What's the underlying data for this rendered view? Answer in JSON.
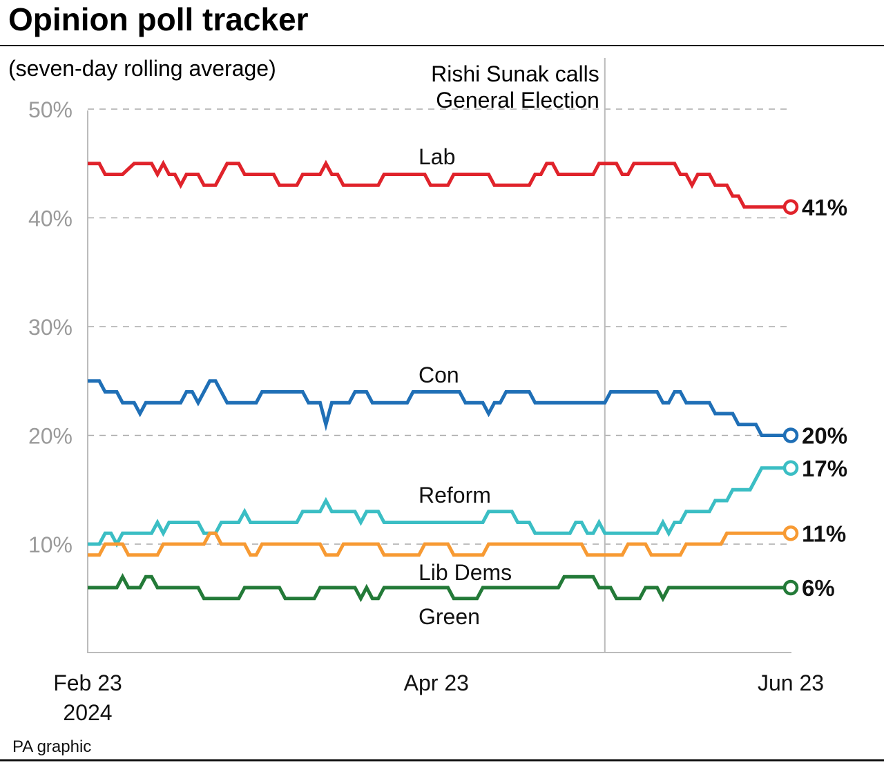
{
  "title": "Opinion poll tracker",
  "footer": "PA graphic",
  "chart_data": {
    "type": "line",
    "title": "Opinion poll tracker",
    "subtitle": "(seven-day rolling average)",
    "ylim": [
      0,
      50
    ],
    "yticks": [
      10,
      20,
      30,
      40,
      50
    ],
    "ytick_labels": [
      "10%",
      "20%",
      "30%",
      "40%",
      "50%"
    ],
    "xlim": [
      "2024-02-23",
      "2024-06-23"
    ],
    "xticks": [
      {
        "date": "2024-02-23",
        "label": "Feb 23",
        "label2": "2024"
      },
      {
        "date": "2024-04-23",
        "label": "Apr 23",
        "label2": ""
      },
      {
        "date": "2024-06-23",
        "label": "Jun 23",
        "label2": ""
      }
    ],
    "grid": "horizontal dashed",
    "annotation": {
      "date": "2024-05-22",
      "line1": "Rishi Sunak calls",
      "line2": "General Election"
    },
    "series": [
      {
        "name": "Lab",
        "color": "#e0232b",
        "end_label": "41%",
        "points": [
          [
            "2024-02-23",
            45
          ],
          [
            "2024-02-25",
            45
          ],
          [
            "2024-02-26",
            44
          ],
          [
            "2024-02-29",
            44
          ],
          [
            "2024-03-02",
            45
          ],
          [
            "2024-03-05",
            45
          ],
          [
            "2024-03-06",
            44
          ],
          [
            "2024-03-07",
            45
          ],
          [
            "2024-03-08",
            44
          ],
          [
            "2024-03-09",
            44
          ],
          [
            "2024-03-10",
            43
          ],
          [
            "2024-03-11",
            44
          ],
          [
            "2024-03-13",
            44
          ],
          [
            "2024-03-14",
            43
          ],
          [
            "2024-03-16",
            43
          ],
          [
            "2024-03-18",
            45
          ],
          [
            "2024-03-20",
            45
          ],
          [
            "2024-03-21",
            44
          ],
          [
            "2024-03-26",
            44
          ],
          [
            "2024-03-27",
            43
          ],
          [
            "2024-03-30",
            43
          ],
          [
            "2024-03-31",
            44
          ],
          [
            "2024-04-03",
            44
          ],
          [
            "2024-04-04",
            45
          ],
          [
            "2024-04-05",
            44
          ],
          [
            "2024-04-06",
            44
          ],
          [
            "2024-04-07",
            43
          ],
          [
            "2024-04-13",
            43
          ],
          [
            "2024-04-14",
            44
          ],
          [
            "2024-04-21",
            44
          ],
          [
            "2024-04-22",
            43
          ],
          [
            "2024-04-25",
            43
          ],
          [
            "2024-04-26",
            44
          ],
          [
            "2024-05-02",
            44
          ],
          [
            "2024-05-03",
            43
          ],
          [
            "2024-05-09",
            43
          ],
          [
            "2024-05-10",
            44
          ],
          [
            "2024-05-11",
            44
          ],
          [
            "2024-05-12",
            45
          ],
          [
            "2024-05-13",
            45
          ],
          [
            "2024-05-14",
            44
          ],
          [
            "2024-05-20",
            44
          ],
          [
            "2024-05-21",
            45
          ],
          [
            "2024-05-24",
            45
          ],
          [
            "2024-05-25",
            44
          ],
          [
            "2024-05-26",
            44
          ],
          [
            "2024-05-27",
            45
          ],
          [
            "2024-06-03",
            45
          ],
          [
            "2024-06-04",
            44
          ],
          [
            "2024-06-05",
            44
          ],
          [
            "2024-06-06",
            43
          ],
          [
            "2024-06-07",
            44
          ],
          [
            "2024-06-09",
            44
          ],
          [
            "2024-06-10",
            43
          ],
          [
            "2024-06-12",
            43
          ],
          [
            "2024-06-13",
            42
          ],
          [
            "2024-06-14",
            42
          ],
          [
            "2024-06-15",
            41
          ],
          [
            "2024-06-23",
            41
          ]
        ]
      },
      {
        "name": "Con",
        "color": "#1f6fb6",
        "end_label": "20%",
        "points": [
          [
            "2024-02-23",
            25
          ],
          [
            "2024-02-25",
            25
          ],
          [
            "2024-02-26",
            24
          ],
          [
            "2024-02-28",
            24
          ],
          [
            "2024-02-29",
            23
          ],
          [
            "2024-03-02",
            23
          ],
          [
            "2024-03-03",
            22
          ],
          [
            "2024-03-04",
            23
          ],
          [
            "2024-03-10",
            23
          ],
          [
            "2024-03-11",
            24
          ],
          [
            "2024-03-12",
            24
          ],
          [
            "2024-03-13",
            23
          ],
          [
            "2024-03-15",
            25
          ],
          [
            "2024-03-16",
            25
          ],
          [
            "2024-03-18",
            23
          ],
          [
            "2024-03-23",
            23
          ],
          [
            "2024-03-24",
            24
          ],
          [
            "2024-03-31",
            24
          ],
          [
            "2024-04-01",
            23
          ],
          [
            "2024-04-03",
            23
          ],
          [
            "2024-04-04",
            21
          ],
          [
            "2024-04-05",
            23
          ],
          [
            "2024-04-08",
            23
          ],
          [
            "2024-04-09",
            24
          ],
          [
            "2024-04-11",
            24
          ],
          [
            "2024-04-12",
            23
          ],
          [
            "2024-04-18",
            23
          ],
          [
            "2024-04-19",
            24
          ],
          [
            "2024-04-27",
            24
          ],
          [
            "2024-04-28",
            23
          ],
          [
            "2024-05-01",
            23
          ],
          [
            "2024-05-02",
            22
          ],
          [
            "2024-05-03",
            23
          ],
          [
            "2024-05-04",
            23
          ],
          [
            "2024-05-05",
            24
          ],
          [
            "2024-05-09",
            24
          ],
          [
            "2024-05-10",
            23
          ],
          [
            "2024-05-22",
            23
          ],
          [
            "2024-05-23",
            24
          ],
          [
            "2024-05-31",
            24
          ],
          [
            "2024-06-01",
            23
          ],
          [
            "2024-06-02",
            23
          ],
          [
            "2024-06-03",
            24
          ],
          [
            "2024-06-04",
            24
          ],
          [
            "2024-06-05",
            23
          ],
          [
            "2024-06-09",
            23
          ],
          [
            "2024-06-10",
            22
          ],
          [
            "2024-06-13",
            22
          ],
          [
            "2024-06-14",
            21
          ],
          [
            "2024-06-17",
            21
          ],
          [
            "2024-06-18",
            20
          ],
          [
            "2024-06-23",
            20
          ]
        ]
      },
      {
        "name": "Reform",
        "color": "#3bbec4",
        "end_label": "17%",
        "points": [
          [
            "2024-02-23",
            10
          ],
          [
            "2024-02-25",
            10
          ],
          [
            "2024-02-26",
            11
          ],
          [
            "2024-02-27",
            11
          ],
          [
            "2024-02-28",
            10
          ],
          [
            "2024-02-29",
            11
          ],
          [
            "2024-03-05",
            11
          ],
          [
            "2024-03-06",
            12
          ],
          [
            "2024-03-07",
            11
          ],
          [
            "2024-03-08",
            12
          ],
          [
            "2024-03-13",
            12
          ],
          [
            "2024-03-14",
            11
          ],
          [
            "2024-03-16",
            11
          ],
          [
            "2024-03-17",
            12
          ],
          [
            "2024-03-20",
            12
          ],
          [
            "2024-03-21",
            13
          ],
          [
            "2024-03-22",
            12
          ],
          [
            "2024-03-30",
            12
          ],
          [
            "2024-03-31",
            13
          ],
          [
            "2024-04-03",
            13
          ],
          [
            "2024-04-04",
            14
          ],
          [
            "2024-04-05",
            13
          ],
          [
            "2024-04-09",
            13
          ],
          [
            "2024-04-10",
            12
          ],
          [
            "2024-04-11",
            13
          ],
          [
            "2024-04-13",
            13
          ],
          [
            "2024-04-14",
            12
          ],
          [
            "2024-05-01",
            12
          ],
          [
            "2024-05-02",
            13
          ],
          [
            "2024-05-06",
            13
          ],
          [
            "2024-05-07",
            12
          ],
          [
            "2024-05-09",
            12
          ],
          [
            "2024-05-10",
            11
          ],
          [
            "2024-05-16",
            11
          ],
          [
            "2024-05-17",
            12
          ],
          [
            "2024-05-18",
            12
          ],
          [
            "2024-05-19",
            11
          ],
          [
            "2024-05-20",
            11
          ],
          [
            "2024-05-21",
            12
          ],
          [
            "2024-05-22",
            11
          ],
          [
            "2024-05-31",
            11
          ],
          [
            "2024-06-01",
            12
          ],
          [
            "2024-06-02",
            11
          ],
          [
            "2024-06-03",
            12
          ],
          [
            "2024-06-04",
            12
          ],
          [
            "2024-06-05",
            13
          ],
          [
            "2024-06-09",
            13
          ],
          [
            "2024-06-10",
            14
          ],
          [
            "2024-06-12",
            14
          ],
          [
            "2024-06-13",
            15
          ],
          [
            "2024-06-16",
            15
          ],
          [
            "2024-06-18",
            17
          ],
          [
            "2024-06-23",
            17
          ]
        ]
      },
      {
        "name": "Lib Dems",
        "color": "#f79a33",
        "end_label": "11%",
        "points": [
          [
            "2024-02-23",
            9
          ],
          [
            "2024-02-25",
            9
          ],
          [
            "2024-02-26",
            10
          ],
          [
            "2024-02-29",
            10
          ],
          [
            "2024-03-01",
            9
          ],
          [
            "2024-03-06",
            9
          ],
          [
            "2024-03-07",
            10
          ],
          [
            "2024-03-14",
            10
          ],
          [
            "2024-03-15",
            11
          ],
          [
            "2024-03-16",
            11
          ],
          [
            "2024-03-17",
            10
          ],
          [
            "2024-03-21",
            10
          ],
          [
            "2024-03-22",
            9
          ],
          [
            "2024-03-23",
            9
          ],
          [
            "2024-03-24",
            10
          ],
          [
            "2024-04-03",
            10
          ],
          [
            "2024-04-04",
            9
          ],
          [
            "2024-04-06",
            9
          ],
          [
            "2024-04-07",
            10
          ],
          [
            "2024-04-13",
            10
          ],
          [
            "2024-04-14",
            9
          ],
          [
            "2024-04-20",
            9
          ],
          [
            "2024-04-21",
            10
          ],
          [
            "2024-04-25",
            10
          ],
          [
            "2024-04-26",
            9
          ],
          [
            "2024-05-01",
            9
          ],
          [
            "2024-05-02",
            10
          ],
          [
            "2024-05-18",
            10
          ],
          [
            "2024-05-19",
            9
          ],
          [
            "2024-05-25",
            9
          ],
          [
            "2024-05-26",
            10
          ],
          [
            "2024-05-29",
            10
          ],
          [
            "2024-05-30",
            9
          ],
          [
            "2024-06-04",
            9
          ],
          [
            "2024-06-05",
            10
          ],
          [
            "2024-06-11",
            10
          ],
          [
            "2024-06-12",
            11
          ],
          [
            "2024-06-23",
            11
          ]
        ]
      },
      {
        "name": "Green",
        "color": "#237a38",
        "end_label": "6%",
        "points": [
          [
            "2024-02-23",
            6
          ],
          [
            "2024-02-28",
            6
          ],
          [
            "2024-02-29",
            7
          ],
          [
            "2024-03-01",
            6
          ],
          [
            "2024-03-03",
            6
          ],
          [
            "2024-03-04",
            7
          ],
          [
            "2024-03-05",
            7
          ],
          [
            "2024-03-06",
            6
          ],
          [
            "2024-03-13",
            6
          ],
          [
            "2024-03-14",
            5
          ],
          [
            "2024-03-20",
            5
          ],
          [
            "2024-03-21",
            6
          ],
          [
            "2024-03-27",
            6
          ],
          [
            "2024-03-28",
            5
          ],
          [
            "2024-04-02",
            5
          ],
          [
            "2024-04-03",
            6
          ],
          [
            "2024-04-09",
            6
          ],
          [
            "2024-04-10",
            5
          ],
          [
            "2024-04-11",
            6
          ],
          [
            "2024-04-12",
            5
          ],
          [
            "2024-04-13",
            5
          ],
          [
            "2024-04-14",
            6
          ],
          [
            "2024-04-25",
            6
          ],
          [
            "2024-04-26",
            5
          ],
          [
            "2024-04-30",
            5
          ],
          [
            "2024-05-01",
            6
          ],
          [
            "2024-05-14",
            6
          ],
          [
            "2024-05-15",
            7
          ],
          [
            "2024-05-20",
            7
          ],
          [
            "2024-05-21",
            6
          ],
          [
            "2024-05-23",
            6
          ],
          [
            "2024-05-24",
            5
          ],
          [
            "2024-05-28",
            5
          ],
          [
            "2024-05-29",
            6
          ],
          [
            "2024-05-31",
            6
          ],
          [
            "2024-06-01",
            5
          ],
          [
            "2024-06-02",
            6
          ],
          [
            "2024-06-23",
            6
          ]
        ]
      }
    ]
  }
}
